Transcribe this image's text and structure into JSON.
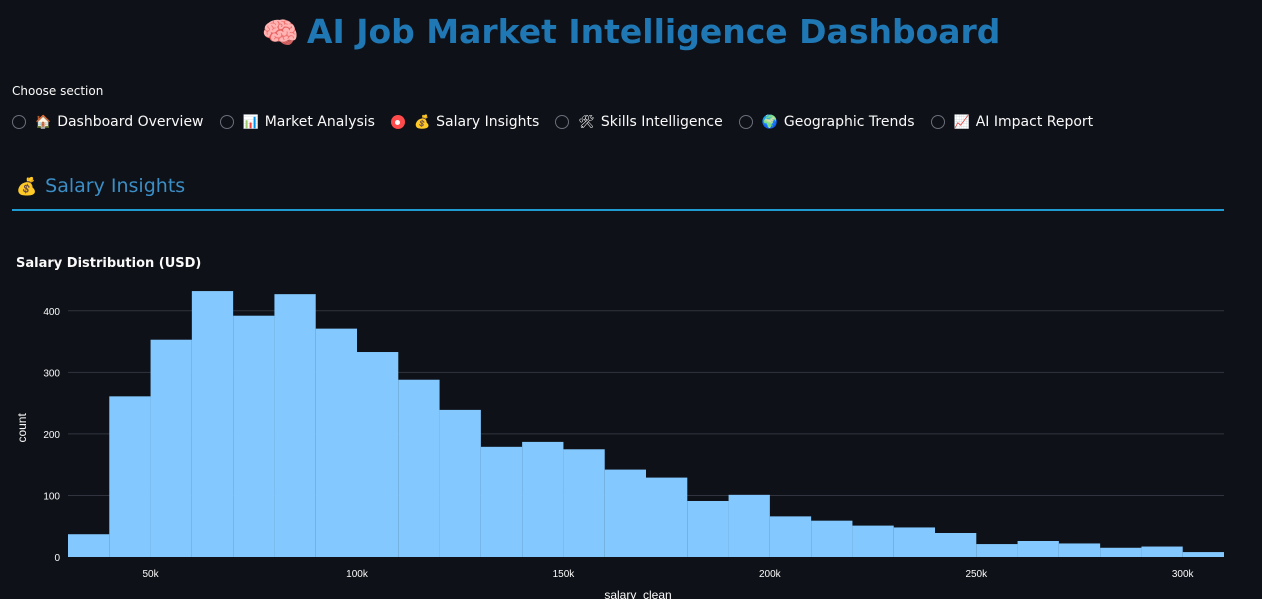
{
  "header": {
    "icon": "brain-icon",
    "title_emoji": "🧠",
    "title": "AI Job Market Intelligence Dashboard"
  },
  "nav": {
    "label": "Choose section",
    "options": [
      {
        "emoji": "🏠",
        "icon": "house-icon",
        "label": "Dashboard Overview",
        "selected": false
      },
      {
        "emoji": "📊",
        "icon": "bar-chart-icon",
        "label": "Market Analysis",
        "selected": false
      },
      {
        "emoji": "💰",
        "icon": "money-bag-icon",
        "label": "Salary Insights",
        "selected": true
      },
      {
        "emoji": "🛠",
        "icon": "tools-icon",
        "label": "Skills Intelligence",
        "selected": false
      },
      {
        "emoji": "🌍",
        "icon": "globe-icon",
        "label": "Geographic Trends",
        "selected": false
      },
      {
        "emoji": "📈",
        "icon": "trend-chart-icon",
        "label": "AI Impact Report",
        "selected": false
      }
    ]
  },
  "section": {
    "emoji": "💰",
    "icon": "money-bag-icon",
    "title": "Salary Insights"
  },
  "colors": {
    "background": "#0e1117",
    "title": "#1f77b4",
    "section_title": "#3b8ec6",
    "rule": "#1f9bd1",
    "bars": "#83c9ff",
    "selected_radio": "#ff4b4b"
  },
  "chart_data": {
    "type": "bar",
    "title": "Salary Distribution (USD)",
    "xlabel": "salary_clean",
    "ylabel": "count",
    "x_range": [
      30000,
      310000
    ],
    "ylim": [
      0,
      450
    ],
    "bin_width": 10000,
    "bin_starts": [
      30000,
      40000,
      50000,
      60000,
      70000,
      80000,
      90000,
      100000,
      110000,
      120000,
      130000,
      140000,
      150000,
      160000,
      170000,
      180000,
      190000,
      200000,
      210000,
      220000,
      230000,
      240000,
      250000,
      260000,
      270000,
      280000,
      290000,
      300000
    ],
    "values": [
      37,
      261,
      353,
      432,
      392,
      427,
      371,
      333,
      288,
      239,
      179,
      187,
      175,
      142,
      129,
      91,
      101,
      66,
      59,
      51,
      48,
      39,
      21,
      26,
      22,
      15,
      17,
      8
    ],
    "x_ticks": [
      {
        "value": 50000,
        "label": "50k"
      },
      {
        "value": 100000,
        "label": "100k"
      },
      {
        "value": 150000,
        "label": "150k"
      },
      {
        "value": 200000,
        "label": "200k"
      },
      {
        "value": 250000,
        "label": "250k"
      },
      {
        "value": 300000,
        "label": "300k"
      }
    ],
    "y_ticks": [
      0,
      100,
      200,
      300,
      400
    ],
    "grid": true,
    "legend": false
  }
}
